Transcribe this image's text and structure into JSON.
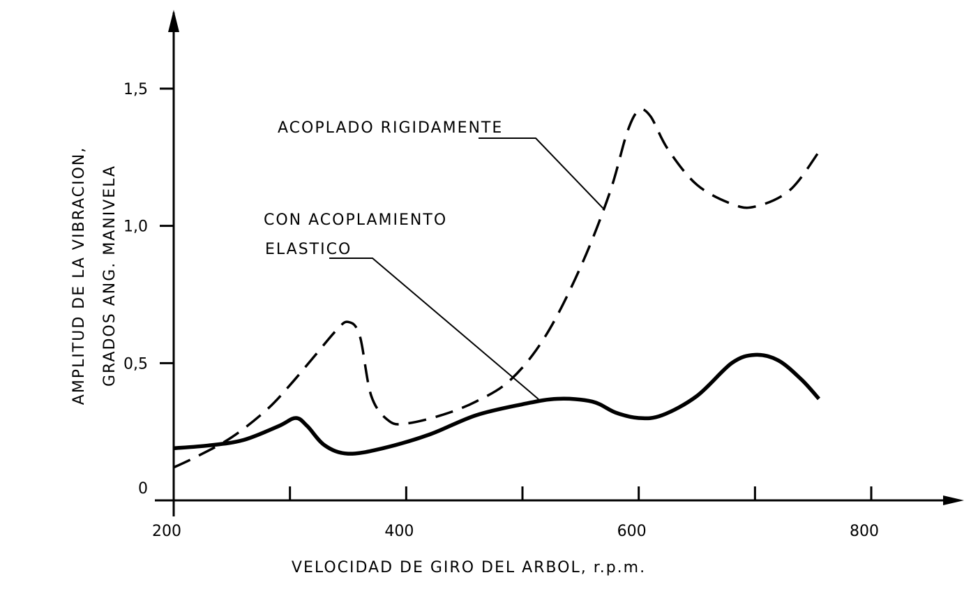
{
  "chart_data": {
    "type": "line",
    "xlabel": "VELOCIDAD DE GIRO DEL ARBOL, r.p.m.",
    "ylabel": [
      "AMPLITUD DE LA VIBRACION,",
      "GRADOS ANG. MANIVELA"
    ],
    "xlim": [
      200,
      860
    ],
    "ylim": [
      0,
      1.75
    ],
    "x_ticks": [
      200,
      400,
      600,
      800
    ],
    "x_tick_labels": [
      "200",
      "400",
      "600",
      "800"
    ],
    "x_minor_ticks": [
      300,
      500,
      700
    ],
    "y_ticks": [
      0,
      0.5,
      1.0,
      1.5
    ],
    "y_tick_labels": [
      "0",
      "0,5",
      "1,0",
      "1,5"
    ],
    "grid": false,
    "series": [
      {
        "name": "ACOPLADO RIGIDAMENTE",
        "style": "dashed",
        "x": [
          200,
          220,
          250,
          280,
          300,
          320,
          340,
          350,
          360,
          370,
          385,
          400,
          430,
          460,
          490,
          520,
          550,
          575,
          590,
          600,
          610,
          625,
          650,
          680,
          700,
          730,
          755
        ],
        "y": [
          0.12,
          0.16,
          0.23,
          0.33,
          0.42,
          0.52,
          0.62,
          0.65,
          0.6,
          0.38,
          0.29,
          0.28,
          0.31,
          0.36,
          0.44,
          0.6,
          0.85,
          1.12,
          1.34,
          1.42,
          1.4,
          1.28,
          1.15,
          1.08,
          1.07,
          1.13,
          1.27
        ]
      },
      {
        "name": "CON ACOPLAMIENTO ELASTICO",
        "style": "solid",
        "x": [
          200,
          230,
          260,
          290,
          305,
          315,
          330,
          350,
          380,
          420,
          460,
          500,
          530,
          560,
          580,
          600,
          620,
          650,
          680,
          700,
          720,
          740,
          755
        ],
        "y": [
          0.19,
          0.2,
          0.22,
          0.27,
          0.3,
          0.27,
          0.2,
          0.17,
          0.19,
          0.24,
          0.31,
          0.35,
          0.37,
          0.36,
          0.32,
          0.3,
          0.31,
          0.38,
          0.5,
          0.53,
          0.51,
          0.44,
          0.37
        ]
      }
    ],
    "annotations": {
      "rigid_label": "ACOPLADO RIGIDAMENTE",
      "elastic_label_line1": "CON ACOPLAMIENTO",
      "elastic_label_line2": "ELASTICO"
    }
  }
}
